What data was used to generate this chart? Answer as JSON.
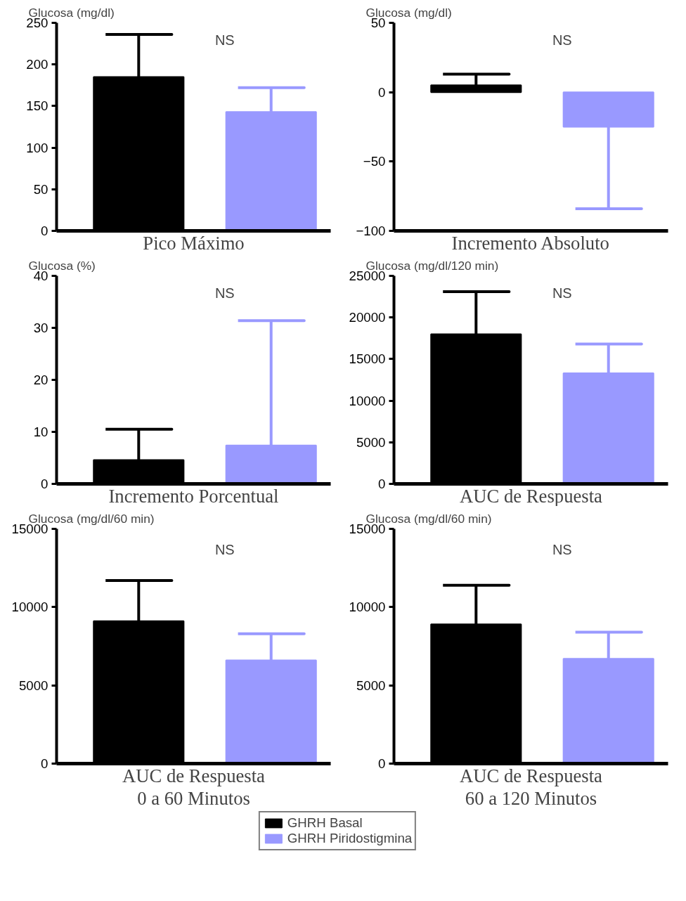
{
  "chart_data": [
    {
      "type": "bar",
      "xlabel": "Pico Máximo",
      "ylabel": "Glucosa (mg/dl)",
      "annotations": [
        "NS"
      ],
      "categories": [
        null
      ],
      "ylim": [
        0,
        250
      ],
      "yticks": [
        0,
        50,
        100,
        150,
        200,
        250
      ],
      "grid": false,
      "series": [
        {
          "color": "#000000",
          "values": [
            185
          ],
          "errors": [
            [
              185,
              236
            ]
          ]
        },
        {
          "color": "#9999ff",
          "values": [
            143
          ],
          "errors": [
            [
              143,
              172
            ]
          ]
        }
      ]
    },
    {
      "type": "bar",
      "xlabel": "Incremento Absoluto",
      "ylabel": "Glucosa (mg/dl)",
      "annotations": [
        "NS"
      ],
      "categories": [
        null
      ],
      "ylim": [
        -100,
        50
      ],
      "yticks": [
        -100,
        -50,
        0,
        50
      ],
      "grid": false,
      "series": [
        {
          "color": "#000000",
          "values": [
            5
          ],
          "errors": [
            [
              5,
              13
            ]
          ]
        },
        {
          "color": "#9999ff",
          "values": [
            -25
          ],
          "errors": [
            [
              -84,
              -25
            ]
          ]
        }
      ]
    },
    {
      "type": "bar",
      "xlabel": "Incremento Porcentual",
      "ylabel": "Glucosa (%)",
      "annotations": [
        "NS"
      ],
      "categories": [
        null
      ],
      "ylim": [
        0,
        40
      ],
      "yticks": [
        0,
        10,
        20,
        30,
        40
      ],
      "grid": false,
      "series": [
        {
          "color": "#000000",
          "values": [
            4.6
          ],
          "errors": [
            [
              4.6,
              10.5
            ]
          ]
        },
        {
          "color": "#9999ff",
          "values": [
            7.4
          ],
          "errors": [
            [
              7.4,
              31.4
            ]
          ]
        }
      ]
    },
    {
      "type": "bar",
      "xlabel": "AUC de Respuesta",
      "ylabel": "Glucosa (mg/dl/120 min)",
      "annotations": [
        "NS"
      ],
      "categories": [
        null
      ],
      "ylim": [
        0,
        25000
      ],
      "yticks": [
        0,
        5000,
        10000,
        15000,
        20000,
        25000
      ],
      "grid": false,
      "series": [
        {
          "color": "#000000",
          "values": [
            18000
          ],
          "errors": [
            [
              18000,
              23100
            ]
          ]
        },
        {
          "color": "#9999ff",
          "values": [
            13300
          ],
          "errors": [
            [
              13300,
              16800
            ]
          ]
        }
      ]
    },
    {
      "type": "bar",
      "xlabel": "AUC de Respuesta\n0 a 60 Minutos",
      "ylabel": "Glucosa (mg/dl/60 min)",
      "annotations": [
        "NS"
      ],
      "categories": [
        null
      ],
      "ylim": [
        0,
        15000
      ],
      "yticks": [
        0,
        5000,
        10000,
        15000
      ],
      "grid": false,
      "series": [
        {
          "color": "#000000",
          "values": [
            9100
          ],
          "errors": [
            [
              9100,
              11700
            ]
          ]
        },
        {
          "color": "#9999ff",
          "values": [
            6600
          ],
          "errors": [
            [
              6600,
              8300
            ]
          ]
        }
      ]
    },
    {
      "type": "bar",
      "xlabel": "AUC de Respuesta\n60 a 120 Minutos",
      "ylabel": "Glucosa (mg/dl/60 min)",
      "annotations": [
        "NS"
      ],
      "categories": [
        null
      ],
      "ylim": [
        0,
        15000
      ],
      "yticks": [
        0,
        5000,
        10000,
        15000
      ],
      "grid": false,
      "legend": "bottom",
      "series": [
        {
          "name": "GHRH Basal",
          "color": "#000000",
          "values": [
            8900
          ],
          "errors": [
            [
              8900,
              11400
            ]
          ]
        },
        {
          "name": "GHRH Piridostigmina",
          "color": "#9999ff",
          "values": [
            6700
          ],
          "errors": [
            [
              6700,
              8400
            ]
          ]
        }
      ]
    }
  ]
}
